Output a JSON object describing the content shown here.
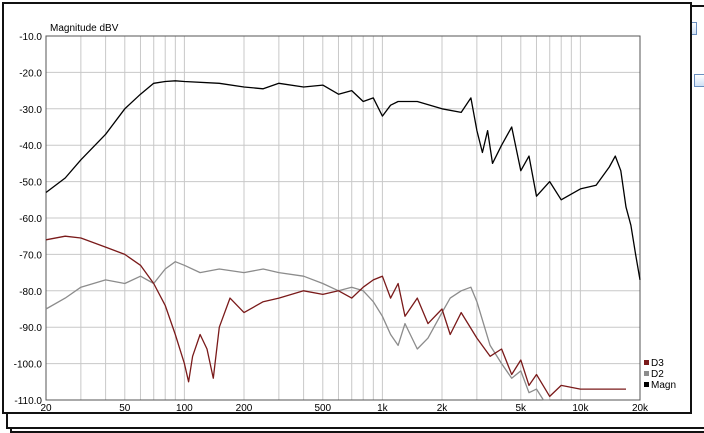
{
  "colors": {
    "d3": "#7a1a1a",
    "d2": "#8c8c8c",
    "magn": "#000000",
    "grid": "#c8c8c8",
    "background": "#ffffff"
  },
  "chart_data": {
    "type": "line",
    "title": "",
    "ylabel": "Magnitude dBV",
    "xlabel": "",
    "xscale": "log",
    "xlim": [
      20,
      20000
    ],
    "ylim": [
      -110,
      -10
    ],
    "x_ticks": [
      20,
      50,
      100,
      200,
      500,
      1000,
      2000,
      5000,
      10000,
      20000
    ],
    "x_tick_labels": [
      "20",
      "50",
      "100",
      "200",
      "500",
      "1k",
      "2k",
      "5k",
      "10k",
      "20k"
    ],
    "y_ticks": [
      -10,
      -20,
      -30,
      -40,
      -50,
      -60,
      -70,
      -80,
      -90,
      -100,
      -110
    ],
    "y_tick_labels": [
      "-10.0",
      "-20.0",
      "-30.0",
      "-40.0",
      "-50.0",
      "-60.0",
      "-70.0",
      "-80.0",
      "-90.0",
      "-100.0",
      "-110.0"
    ],
    "grid": true,
    "legend_position": "bottom-right",
    "series": [
      {
        "name": "D3",
        "key": "d3",
        "points": [
          [
            20,
            -66
          ],
          [
            25,
            -65
          ],
          [
            30,
            -65.5
          ],
          [
            40,
            -68
          ],
          [
            50,
            -70
          ],
          [
            60,
            -73
          ],
          [
            70,
            -78
          ],
          [
            80,
            -84
          ],
          [
            90,
            -92
          ],
          [
            100,
            -100
          ],
          [
            105,
            -105
          ],
          [
            110,
            -98
          ],
          [
            120,
            -92
          ],
          [
            130,
            -96
          ],
          [
            140,
            -104
          ],
          [
            150,
            -90
          ],
          [
            170,
            -82
          ],
          [
            200,
            -86
          ],
          [
            250,
            -83
          ],
          [
            300,
            -82
          ],
          [
            400,
            -80
          ],
          [
            500,
            -81
          ],
          [
            600,
            -80
          ],
          [
            700,
            -82
          ],
          [
            800,
            -79
          ],
          [
            900,
            -77
          ],
          [
            1000,
            -76
          ],
          [
            1100,
            -82
          ],
          [
            1200,
            -78
          ],
          [
            1300,
            -87
          ],
          [
            1500,
            -82
          ],
          [
            1700,
            -89
          ],
          [
            2000,
            -85
          ],
          [
            2200,
            -92
          ],
          [
            2500,
            -86
          ],
          [
            3000,
            -93
          ],
          [
            3500,
            -98
          ],
          [
            4000,
            -96
          ],
          [
            4500,
            -103
          ],
          [
            5000,
            -99
          ],
          [
            5500,
            -106
          ],
          [
            6000,
            -103
          ],
          [
            7000,
            -109
          ],
          [
            8000,
            -106
          ],
          [
            10000,
            -107
          ],
          [
            15000,
            -107
          ],
          [
            17000,
            -107
          ]
        ]
      },
      {
        "name": "D2",
        "key": "d2",
        "points": [
          [
            20,
            -85
          ],
          [
            25,
            -82
          ],
          [
            30,
            -79
          ],
          [
            40,
            -77
          ],
          [
            50,
            -78
          ],
          [
            60,
            -76
          ],
          [
            70,
            -78
          ],
          [
            80,
            -74
          ],
          [
            90,
            -72
          ],
          [
            100,
            -73
          ],
          [
            120,
            -75
          ],
          [
            150,
            -74
          ],
          [
            200,
            -75
          ],
          [
            250,
            -74
          ],
          [
            300,
            -75
          ],
          [
            400,
            -76
          ],
          [
            500,
            -78
          ],
          [
            600,
            -80
          ],
          [
            700,
            -79
          ],
          [
            800,
            -80
          ],
          [
            900,
            -83
          ],
          [
            1000,
            -87
          ],
          [
            1100,
            -92
          ],
          [
            1200,
            -95
          ],
          [
            1300,
            -89
          ],
          [
            1500,
            -96
          ],
          [
            1700,
            -93
          ],
          [
            2000,
            -86
          ],
          [
            2200,
            -82
          ],
          [
            2500,
            -80
          ],
          [
            2800,
            -79
          ],
          [
            3000,
            -83
          ],
          [
            3500,
            -95
          ],
          [
            4000,
            -100
          ],
          [
            4500,
            -104
          ],
          [
            5000,
            -102
          ],
          [
            5500,
            -108
          ],
          [
            6000,
            -107
          ],
          [
            6500,
            -110
          ],
          [
            7000,
            -110
          ]
        ]
      },
      {
        "name": "Magn",
        "key": "magn",
        "points": [
          [
            20,
            -53
          ],
          [
            25,
            -49
          ],
          [
            30,
            -44
          ],
          [
            40,
            -37
          ],
          [
            50,
            -30
          ],
          [
            60,
            -26
          ],
          [
            70,
            -23
          ],
          [
            80,
            -22.5
          ],
          [
            90,
            -22.3
          ],
          [
            100,
            -22.5
          ],
          [
            150,
            -23
          ],
          [
            200,
            -24
          ],
          [
            250,
            -24.5
          ],
          [
            300,
            -23
          ],
          [
            400,
            -24
          ],
          [
            500,
            -23.5
          ],
          [
            600,
            -26
          ],
          [
            700,
            -25
          ],
          [
            800,
            -28
          ],
          [
            900,
            -27
          ],
          [
            1000,
            -32
          ],
          [
            1100,
            -29
          ],
          [
            1200,
            -28
          ],
          [
            1500,
            -28
          ],
          [
            2000,
            -30
          ],
          [
            2500,
            -31
          ],
          [
            2800,
            -27
          ],
          [
            3000,
            -36
          ],
          [
            3200,
            -42
          ],
          [
            3400,
            -36
          ],
          [
            3600,
            -45
          ],
          [
            4000,
            -40
          ],
          [
            4500,
            -35
          ],
          [
            5000,
            -47
          ],
          [
            5500,
            -43
          ],
          [
            6000,
            -54
          ],
          [
            7000,
            -50
          ],
          [
            8000,
            -55
          ],
          [
            10000,
            -52
          ],
          [
            12000,
            -51
          ],
          [
            14000,
            -46
          ],
          [
            15000,
            -43
          ],
          [
            16000,
            -47
          ],
          [
            17000,
            -57
          ],
          [
            18000,
            -62
          ],
          [
            19000,
            -70
          ],
          [
            20000,
            -77
          ]
        ]
      }
    ]
  }
}
